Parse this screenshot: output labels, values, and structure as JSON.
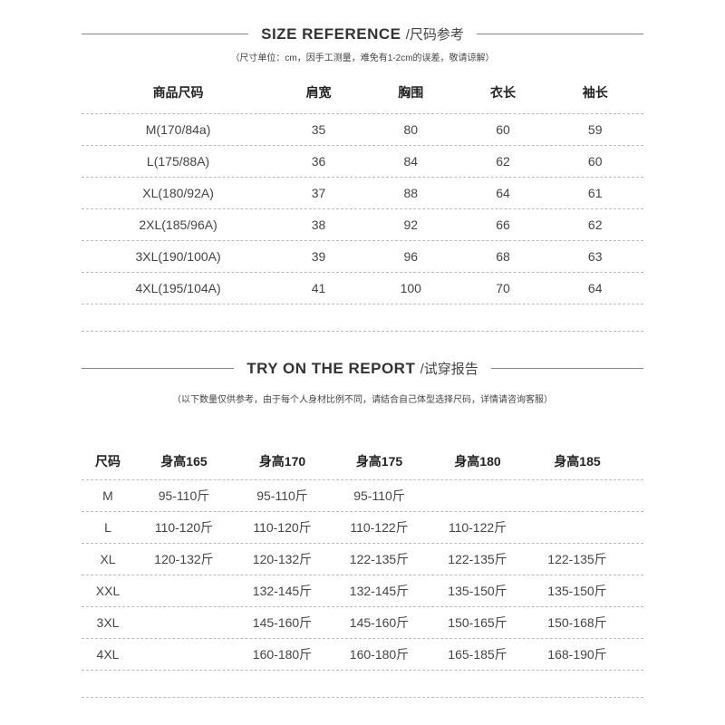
{
  "size_reference": {
    "title": "SIZE REFERENCE",
    "title_cn": "/尺码参考",
    "note": "（尺寸单位：cm，因手工测量，难免有1-2cm的误差，敬请谅解）",
    "headers": [
      "商品尺码",
      "肩宽",
      "胸围",
      "衣长",
      "袖长"
    ],
    "rows": [
      [
        "M(170/84a)",
        "35",
        "80",
        "60",
        "59"
      ],
      [
        "L(175/88A)",
        "36",
        "84",
        "62",
        "60"
      ],
      [
        "XL(180/92A)",
        "37",
        "88",
        "64",
        "61"
      ],
      [
        "2XL(185/96A)",
        "38",
        "92",
        "66",
        "62"
      ],
      [
        "3XL(190/100A)",
        "39",
        "96",
        "68",
        "63"
      ],
      [
        "4XL(195/104A)",
        "41",
        "100",
        "70",
        "64"
      ]
    ]
  },
  "try_on": {
    "title": "TRY ON THE REPORT",
    "title_cn": "/试穿报告",
    "note": "（以下数量仅供参考，由于每个人身材比例不同，请结合自己体型选择尺码，详情请咨询客服）",
    "headers": [
      "尺码",
      "身高165",
      "身高170",
      "身高175",
      "身高180",
      "身高185"
    ],
    "rows": [
      [
        "M",
        "95-110斤",
        "95-110斤",
        "95-110斤",
        "",
        ""
      ],
      [
        "L",
        "110-120斤",
        "110-120斤",
        "110-122斤",
        "110-122斤",
        ""
      ],
      [
        "XL",
        "120-132斤",
        "120-132斤",
        "122-135斤",
        "122-135斤",
        "122-135斤"
      ],
      [
        "XXL",
        "",
        "132-145斤",
        "132-145斤",
        "135-150斤",
        "135-150斤"
      ],
      [
        "3XL",
        "",
        "145-160斤",
        "145-160斤",
        "150-165斤",
        "150-168斤"
      ],
      [
        "4XL",
        "",
        "160-180斤",
        "160-180斤",
        "165-185斤",
        "168-190斤"
      ]
    ]
  }
}
